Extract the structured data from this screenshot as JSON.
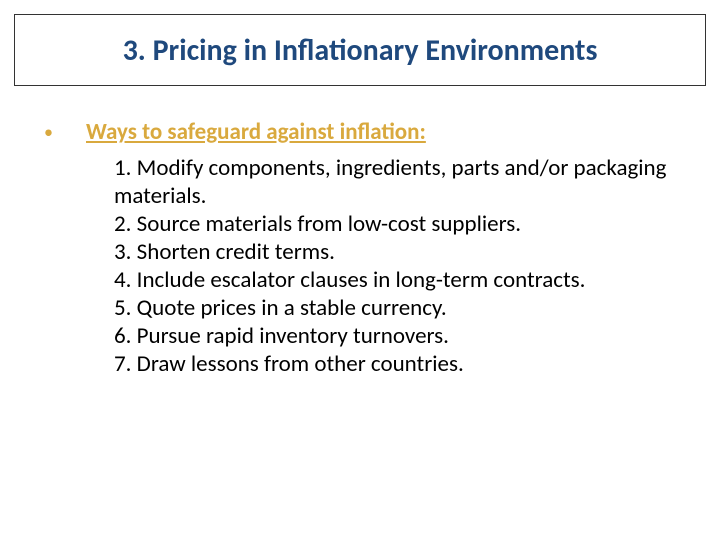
{
  "title": {
    "text": "3. Pricing in Inflationary Environments",
    "color": "#1f497d",
    "fontsize": 30,
    "fontweight": 700,
    "border_color": "#333333"
  },
  "bullet": {
    "marker": "•",
    "marker_color": "#d9a93e",
    "heading": "Ways to safeguard against inflation:",
    "heading_color": "#d9a93e",
    "heading_fontsize": 23,
    "heading_fontweight": 700,
    "heading_underline": true
  },
  "items": [
    "1. Modify components, ingredients, parts and/or packaging materials.",
    "2. Source materials from low-cost suppliers.",
    "3. Shorten credit terms.",
    "4. Include escalator clauses in long-term contracts.",
    "5. Quote prices in a stable currency.",
    "6. Pursue rapid inventory turnovers.",
    "7. Draw lessons from other countries."
  ],
  "item_style": {
    "color": "#000000",
    "fontsize": 23,
    "line_height": 1.22
  },
  "background_color": "#ffffff"
}
